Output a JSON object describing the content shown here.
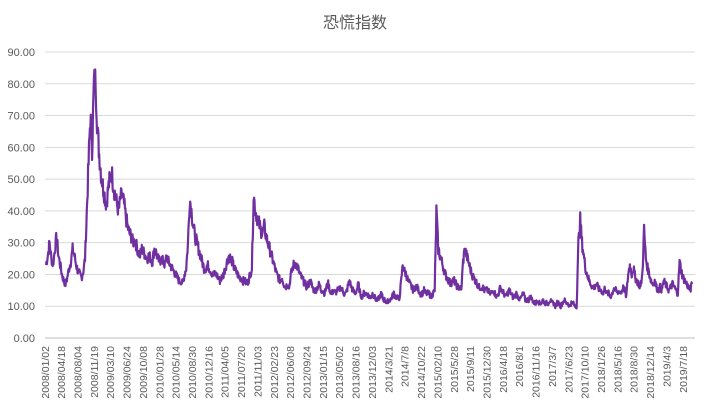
{
  "chart_data": {
    "type": "line",
    "title": "恐慌指数",
    "xlabel": "",
    "ylabel": "",
    "ylim": [
      0,
      90
    ],
    "y_ticks": [
      "0.00",
      "10.00",
      "20.00",
      "30.00",
      "40.00",
      "50.00",
      "60.00",
      "70.00",
      "80.00",
      "90.00"
    ],
    "x_tick_labels": [
      "2008/01/02",
      "2008/04/18",
      "2008/08/04",
      "2008/11/19",
      "2009/03/10",
      "2009/06/24",
      "2009/10/08",
      "2010/01/28",
      "2010/05/14",
      "2010/08/30",
      "2010/12/16",
      "2011/04/05",
      "2011/07/20",
      "2011/11/03",
      "2012/02/23",
      "2012/06/08",
      "2012/09/24",
      "2013/01/15",
      "2013/05/02",
      "2013/08/16",
      "2013/12/03",
      "2014/3/21",
      "2014/7/8",
      "2014/10/22",
      "2015/02/10",
      "2015/5/28",
      "2015/9/11",
      "2015/12/30",
      "2016/4/18",
      "2016/8/1",
      "2016/11/16",
      "2017/3/7",
      "2017/6/23",
      "2017/10/10",
      "2018/1/26",
      "2018/5/16",
      "2018/8/30",
      "2018/12/14",
      "2019/4/3",
      "2019/7/18"
    ],
    "grid": true,
    "legend": "none",
    "color": "#7030a0",
    "series": [
      {
        "values": [
          23,
          26,
          30,
          25,
          23,
          28,
          32,
          26,
          23,
          20,
          18,
          17,
          19,
          22,
          24,
          28,
          26,
          23,
          21,
          20,
          19,
          21,
          25,
          40,
          55,
          70,
          60,
          80,
          81,
          65,
          58,
          52,
          48,
          45,
          42,
          47,
          50,
          52,
          48,
          45,
          42,
          40,
          44,
          45,
          42,
          38,
          35,
          33,
          32,
          30,
          31,
          29,
          27,
          26,
          28,
          27,
          26,
          25,
          26,
          25,
          24,
          28,
          27,
          25,
          24,
          25,
          24,
          23,
          26,
          24,
          23,
          22,
          21,
          20,
          19,
          18,
          18,
          17,
          20,
          22,
          30,
          44,
          40,
          35,
          32,
          30,
          28,
          26,
          24,
          22,
          22,
          23,
          22,
          21,
          20,
          20,
          20,
          19,
          18,
          19,
          20,
          22,
          24,
          26,
          25,
          24,
          22,
          21,
          20,
          19,
          19,
          18,
          18,
          17,
          18,
          20,
          22,
          45,
          40,
          38,
          36,
          34,
          33,
          35,
          32,
          30,
          28,
          26,
          24,
          22,
          20,
          19,
          18,
          19,
          17,
          16,
          17,
          16,
          20,
          22,
          24,
          23,
          22,
          20,
          19,
          18,
          17,
          16,
          17,
          18,
          16,
          15,
          15,
          16,
          17,
          15,
          15,
          14,
          16,
          17,
          15,
          14,
          15,
          14,
          15,
          15,
          16,
          15,
          14,
          14,
          16,
          18,
          16,
          15,
          14,
          15,
          17,
          14,
          13,
          14,
          14,
          14,
          13,
          13,
          14,
          13,
          12,
          12,
          13,
          14,
          12,
          12,
          11,
          12,
          12,
          13,
          14,
          13,
          13,
          12,
          17,
          23,
          21,
          20,
          18,
          17,
          16,
          15,
          16,
          16,
          15,
          14,
          14,
          15,
          14,
          14,
          14,
          13,
          14,
          15,
          40,
          28,
          26,
          24,
          22,
          20,
          19,
          18,
          17,
          18,
          18,
          17,
          16,
          16,
          15,
          24,
          28,
          26,
          24,
          22,
          20,
          19,
          18,
          17,
          16,
          16,
          16,
          15,
          15,
          15,
          14,
          14,
          15,
          14,
          13,
          14,
          16,
          15,
          14,
          13,
          14,
          15,
          14,
          13,
          13,
          14,
          13,
          12,
          13,
          14,
          12,
          12,
          12,
          13,
          12,
          11,
          11,
          12,
          11,
          11,
          12,
          11,
          11,
          11,
          12,
          11,
          11,
          10,
          11,
          11,
          10,
          11,
          12,
          11,
          11,
          10,
          11,
          11,
          10,
          10,
          30,
          37,
          30,
          26,
          22,
          20,
          18,
          17,
          16,
          16,
          17,
          16,
          15,
          15,
          14,
          16,
          14,
          14,
          13,
          14,
          16,
          15,
          14,
          15,
          14,
          16,
          15,
          13,
          20,
          23,
          20,
          22,
          19,
          18,
          17,
          16,
          20,
          34,
          25,
          22,
          20,
          18,
          17,
          18,
          16,
          15,
          16,
          15,
          18,
          17,
          16,
          15,
          16,
          17,
          16,
          15,
          14,
          24,
          21,
          19,
          18,
          17,
          16,
          15,
          17
        ]
      }
    ],
    "x_range_days": [
      0,
      4275
    ]
  }
}
